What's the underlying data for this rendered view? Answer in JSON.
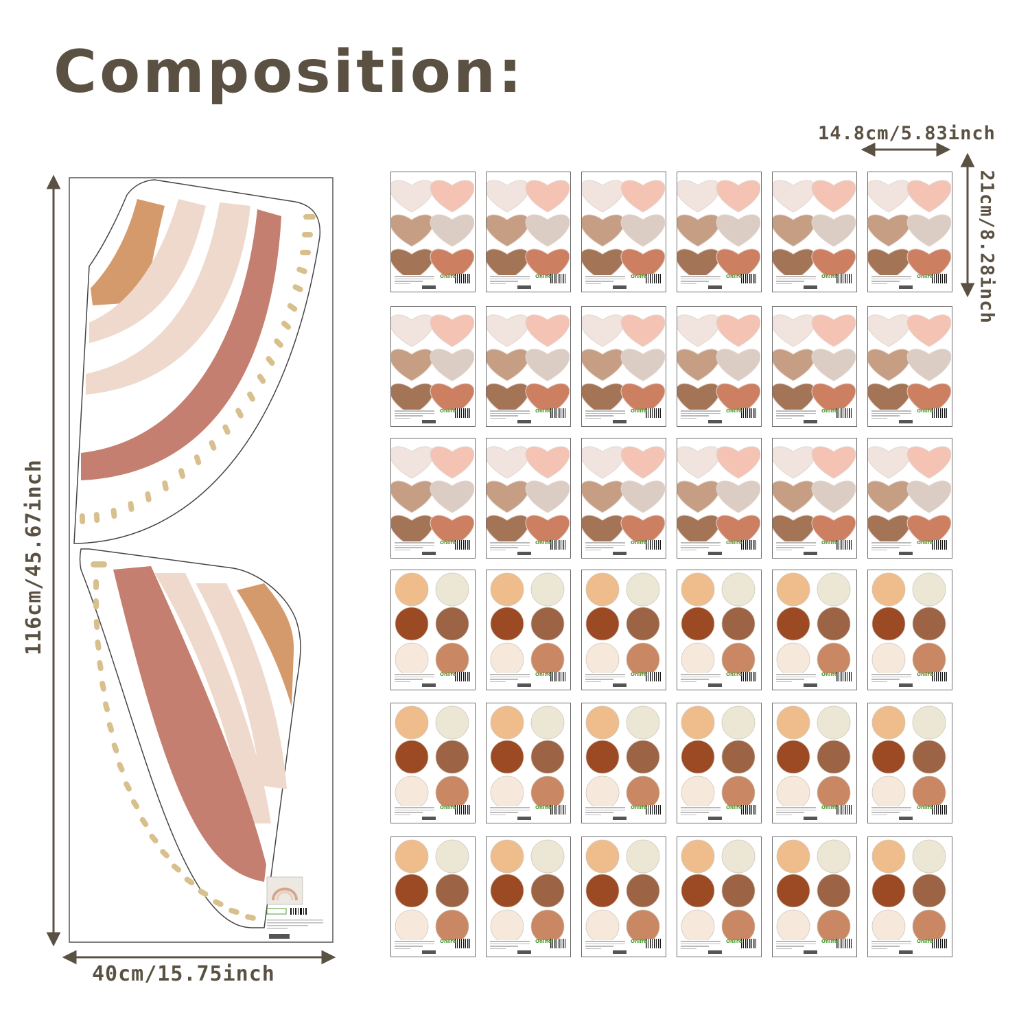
{
  "title": "Composition:",
  "dimensions": {
    "panel_height": "116cm/45.67inch",
    "panel_width": "40cm/15.75inch",
    "sheet_width": "14.8cm/5.83inch",
    "sheet_height": "21cm/8.28inch"
  },
  "sheets": {
    "columns": 6,
    "heart_rows": 3,
    "dot_rows": 3,
    "brand_label": "Onlife"
  },
  "colors": {
    "text": "#5b5143",
    "rainbow_orange": "#d49a6c",
    "rainbow_light": "#eed9cc",
    "rainbow_rose": "#c47f70",
    "dashes": "#d8c08e",
    "heart_colors": [
      "#f1e4df",
      "#f4c3b4",
      "#c59e84",
      "#dccdc4",
      "#a47457",
      "#cd7f62"
    ],
    "dot_colors": [
      "#efbd8c",
      "#ece6d4",
      "#9c4a24",
      "#9c6445",
      "#f6e9dc",
      "#c98863"
    ]
  }
}
